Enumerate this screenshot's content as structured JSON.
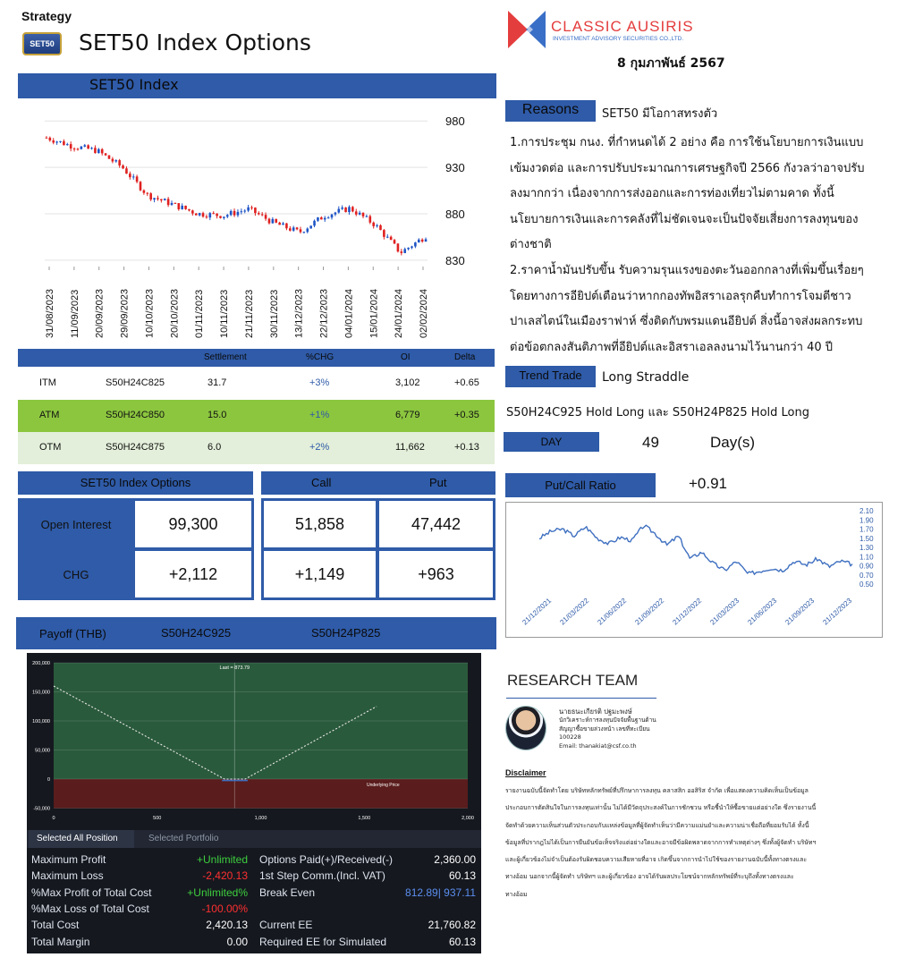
{
  "header": {
    "category": "Strategy",
    "logo_text": "SET50",
    "title": "SET50 Index Options",
    "brand_name": "CLASSIC AUSIRIS",
    "brand_sub": "INVESTMENT ADVISORY SECURITIES CO.,LTD.",
    "date": "8 กุมภาพันธ์ 2567"
  },
  "index_chart": {
    "title": "SET50 Index",
    "y_ticks": [
      "980",
      "930",
      "880",
      "830"
    ],
    "x_ticks": [
      "31/08/2023",
      "11/09/2023",
      "20/09/2023",
      "29/09/2023",
      "10/10/2023",
      "20/10/2023",
      "01/11/2023",
      "10/11/2023",
      "21/11/2023",
      "30/11/2023",
      "13/12/2023",
      "22/12/2023",
      "04/01/2024",
      "15/01/2024",
      "24/01/2024",
      "02/02/2024"
    ],
    "up_color": "#1f55c6",
    "down_color": "#e02020"
  },
  "chart_data": [
    {
      "type": "line",
      "title": "SET50 Index",
      "x": [
        "31/08/2023",
        "11/09/2023",
        "20/09/2023",
        "29/09/2023",
        "10/10/2023",
        "20/10/2023",
        "01/11/2023",
        "10/11/2023",
        "21/11/2023",
        "30/11/2023",
        "13/12/2023",
        "22/12/2023",
        "04/01/2024",
        "15/01/2024",
        "24/01/2024",
        "02/02/2024"
      ],
      "values": [
        962,
        953,
        948,
        930,
        900,
        890,
        880,
        878,
        885,
        870,
        860,
        878,
        886,
        868,
        838,
        856
      ],
      "ylim": [
        825,
        985
      ],
      "y_ticks": [
        980,
        930,
        880,
        830
      ]
    },
    {
      "type": "line",
      "title": "Put/Call Ratio",
      "x": [
        "21/12/2021",
        "21/03/2022",
        "21/06/2022",
        "21/09/2022",
        "21/12/2022",
        "21/03/2023",
        "21/06/2023",
        "21/09/2023",
        "21/12/2023"
      ],
      "values": [
        1.5,
        1.75,
        1.45,
        1.6,
        1.35,
        1.0,
        0.75,
        0.85,
        1.0
      ],
      "ylim": [
        0.5,
        2.1
      ],
      "y_ticks": [
        "2.10",
        "1.90",
        "1.70",
        "1.50",
        "1.30",
        "1.10",
        "0.90",
        "0.70",
        "0.50"
      ]
    },
    {
      "type": "line",
      "title": "Payoff (THB)",
      "x": [
        0,
        500,
        825,
        925,
        1000,
        1500,
        2000
      ],
      "series": [
        {
          "values": [
            160000,
            90000,
            0,
            0,
            9000,
            125000,
            null
          ]
        }
      ],
      "x_ticks": [
        "0",
        "500",
        "1,000",
        "1,500",
        "2,000"
      ],
      "y_ticks": [
        "200,000",
        "150,000",
        "100,000",
        "50,000",
        "0",
        "-50,000"
      ],
      "ylim": [
        -50000,
        200000
      ],
      "annotations": [
        "Last = 873.79",
        "Underlying Price"
      ]
    }
  ],
  "reasons": {
    "label": "Reasons",
    "headline": "SET50 มีโอกาสทรงตัว",
    "lines": [
      "1.การประชุม กนง. ที่กำหนดได้ 2 อย่าง คือ การใช้นโยบายการเงินแบบ",
      "เข้มงวดต่อ และการปรับประมาณการเศรษฐกิจปี 2566 กังวลว่าอาจปรับ",
      "ลงมากกว่า เนื่องจากการส่งออกและการท่องเที่ยวไม่ตามคาด ทั้งนี้",
      "นโยบายการเงินและการคลังที่ไม่ชัดเจนจะเป็นปัจจัยเสี่ยงการลงทุนของ",
      "ต่างชาติ",
      "2.ราคาน้ำมันปรับขึ้น รับความรุนแรงของตะวันออกกลางที่เพิ่มขึ้นเรื่อยๆ",
      "โดยทางการอียิปต์เตือนว่าหากกองทัพอิสราเอลรุกคืบทำการโจมตีชาว",
      "ปาเลสไตน์ในเมืองราฟาห์ ซึ่งติดกับพรมแดนอียิปต์ สิ่งนี้อาจส่งผลกระทบ",
      "ต่อข้อตกลงสันติภาพที่อียิปต์และอิสราเอลลงนามไว้นานกว่า 40 ปี"
    ]
  },
  "trend": {
    "label": "Trend Trade",
    "value": "Long Straddle",
    "position": "S50H24C925 Hold Long และ S50H24P825 Hold Long",
    "day_label": "DAY",
    "day_value": "49",
    "day_unit": "Day(s)"
  },
  "series_table": {
    "headers": [
      "Settlement",
      "%CHG",
      "OI",
      "Delta"
    ],
    "rows": [
      {
        "moneyness": "ITM",
        "series": "S50H24C825",
        "settlement": "31.7",
        "chg": "+3%",
        "oi": "3,102",
        "delta": "+0.65"
      },
      {
        "moneyness": "ATM",
        "series": "S50H24C850",
        "settlement": "15.0",
        "chg": "+1%",
        "oi": "6,779",
        "delta": "+0.35"
      },
      {
        "moneyness": "OTM",
        "series": "S50H24C875",
        "settlement": "6.0",
        "chg": "+2%",
        "oi": "11,662",
        "delta": "+0.13"
      }
    ]
  },
  "open_interest": {
    "title": "SET50 Index Options",
    "call_label": "Call",
    "put_label": "Put",
    "oi_label": "Open Interest",
    "chg_label": "CHG",
    "oi_total": "99,300",
    "oi_call": "51,858",
    "oi_put": "47,442",
    "chg_total": "+2,112",
    "chg_call": "+1,149",
    "chg_put": "+963"
  },
  "putcall": {
    "label": "Put/Call Ratio",
    "value": "+0.91"
  },
  "payoff": {
    "label": "Payoff (THB)",
    "series_call": "S50H24C925",
    "series_put": "S50H24P825",
    "last_label": "Last = 873.79",
    "underlying_label": "Underlying Price",
    "tabs": [
      "Selected All Position",
      "Selected Portfolio"
    ],
    "stats_left": [
      {
        "label": "Maximum Profit",
        "value": "+Unlimited",
        "color": "#3ecf3e"
      },
      {
        "label": "Maximum Loss",
        "value": "-2,420.13",
        "color": "#ff3030"
      },
      {
        "label": "%Max Profit of Total Cost",
        "value": "+Unlimited%",
        "color": "#3ecf3e"
      },
      {
        "label": "%Max Loss of Total Cost",
        "value": "-100.00%",
        "color": "#ff3030"
      },
      {
        "label": "Total Cost",
        "value": "2,420.13",
        "color": "#ffffff"
      },
      {
        "label": "Total Margin",
        "value": "0.00",
        "color": "#ffffff"
      }
    ],
    "stats_right": [
      {
        "label": "Options Paid(+)/Received(-)",
        "value": "2,360.00"
      },
      {
        "label": "1st Step Comm.(Incl. VAT)",
        "value": "60.13"
      },
      {
        "label": "Break Even",
        "value": "812.89| 937.11"
      },
      {
        "label": "Current EE",
        "value": "21,760.82"
      },
      {
        "label": "Required EE for Simulated",
        "value": "60.13"
      }
    ]
  },
  "research": {
    "title": "RESEARCH TEAM",
    "lines": [
      "นายธนะเกียรติ ปฐมะพงษ์",
      "นักวิเคราะห์การลงทุนปัจจัยพื้นฐานด้าน",
      "สัญญาซื้อขายล่วงหน้า เลขที่ทะเบียน",
      "100228",
      "Email: thanakiat@csf.co.th"
    ],
    "disclaimer_title": "Disclaimer",
    "disclaimer_lines": [
      "รายงานฉบับนี้จัดทำโดย บริษัทหลักทรัพย์ที่ปรึกษาการลงทุน คลาสสิก ออสิริส จำกัด เพื่อแสดงความคิดเห็นเป็นข้อมูล",
      "ประกอบการตัดสินใจในการลงทุนเท่านั้น ไม่ได้มีวัตถุประสงค์ในการชักชวน หรือชี้นำให้ซื้อขายแต่อย่างใด ซึ่งรายงานนี้",
      "จัดทำด้วยความเห็นส่วนตัวประกอบกับแหล่งข้อมูลที่ผู้จัดทำเห็นว่ามีความแม่นยำและความน่าเชื่อถือที่ยอมรับได้ ทั้งนี้",
      "ข้อมูลที่ปรากฎไม่ได้เป็นการยืนยันข้อเท็จจริงแต่อย่างใดและอาจมีข้อผิดพลาดจากการทำเหตุต่างๆ ซึ่งทั้งผู้จัดทำ บริษัทฯ",
      "และผู้เกี่ยวข้องไม่จำเป็นต้องรับผิดชอบความเสียหายที่อาจ เกิดขึ้นจากการนำไปใช้ของรายงานฉบับนี้ทั้งทางตรงและ",
      "ทางอ้อม นอกจากนี้ผู้จัดทำ บริษัทฯ และผู้เกี่ยวข้อง อาจได้รับผลประโยชน์จากหลักทรัพย์ที่ระบุถึงทั้งทางตรงและ",
      "ทางอ้อม"
    ]
  }
}
